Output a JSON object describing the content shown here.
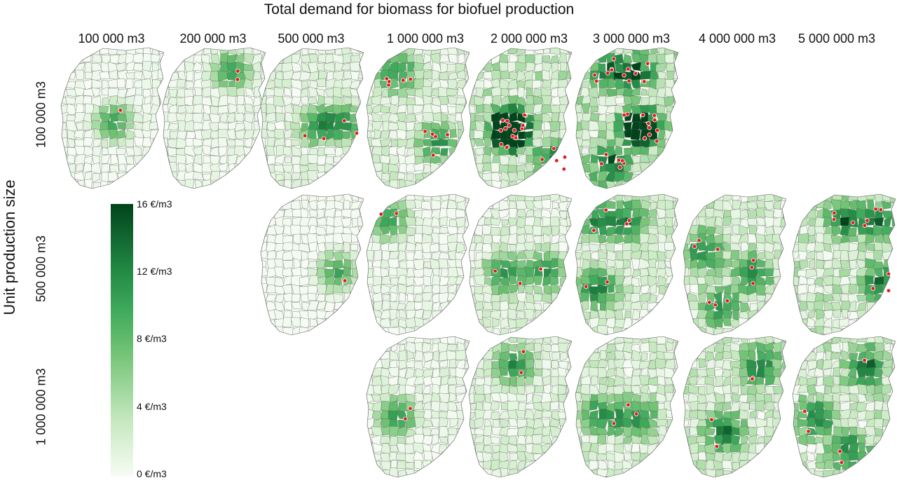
{
  "title": "Total demand for biomass for biofuel production",
  "y_axis_label": "Unit production size",
  "columns": [
    "100 000 m3",
    "200 000 m3",
    "500 000 m3",
    "1 000 000 m3",
    "2 000 000 m3",
    "3 000 000 m3",
    "4 000 000 m3",
    "5 000 000 m3"
  ],
  "rows": [
    "100 000 m3",
    "500 000 m3",
    "1 000 000 m3"
  ],
  "legend": {
    "ticks": [
      "16 €/m3",
      "12 €/m3",
      "8 €/m3",
      "4 €/m3",
      "0 €/m3"
    ],
    "range": [
      0,
      16
    ],
    "colors": [
      "#f7fcf5",
      "#c7e9c0",
      "#74c476",
      "#41ab5d",
      "#238b45",
      "#00441b"
    ]
  },
  "colors": {
    "site_marker": "#e41a1c",
    "boundary": "#5a5a5a",
    "background_region": "#f4faf1"
  },
  "panels": [
    {
      "row": 0,
      "col": 0,
      "intensity": 0.1,
      "sites": 1,
      "hot": 1
    },
    {
      "row": 0,
      "col": 1,
      "intensity": 0.15,
      "sites": 2,
      "hot": 1
    },
    {
      "row": 0,
      "col": 2,
      "intensity": 0.25,
      "sites": 4,
      "hot": 2
    },
    {
      "row": 0,
      "col": 3,
      "intensity": 0.35,
      "sites": 10,
      "hot": 2
    },
    {
      "row": 0,
      "col": 4,
      "intensity": 0.55,
      "sites": 20,
      "hot": 4
    },
    {
      "row": 0,
      "col": 5,
      "intensity": 0.6,
      "sites": 30,
      "hot": 5
    },
    {
      "row": 1,
      "col": 2,
      "intensity": 0.05,
      "sites": 1,
      "hot": 1
    },
    {
      "row": 1,
      "col": 3,
      "intensity": 0.15,
      "sites": 2,
      "hot": 1
    },
    {
      "row": 1,
      "col": 4,
      "intensity": 0.3,
      "sites": 3,
      "hot": 2
    },
    {
      "row": 1,
      "col": 5,
      "intensity": 0.4,
      "sites": 6,
      "hot": 3
    },
    {
      "row": 1,
      "col": 6,
      "intensity": 0.45,
      "sites": 9,
      "hot": 3
    },
    {
      "row": 1,
      "col": 7,
      "intensity": 0.5,
      "sites": 10,
      "hot": 3
    },
    {
      "row": 2,
      "col": 3,
      "intensity": 0.2,
      "sites": 2,
      "hot": 1
    },
    {
      "row": 2,
      "col": 4,
      "intensity": 0.3,
      "sites": 2,
      "hot": 1
    },
    {
      "row": 2,
      "col": 5,
      "intensity": 0.4,
      "sites": 3,
      "hot": 2
    },
    {
      "row": 2,
      "col": 6,
      "intensity": 0.45,
      "sites": 4,
      "hot": 2
    },
    {
      "row": 2,
      "col": 7,
      "intensity": 0.5,
      "sites": 5,
      "hot": 3
    }
  ]
}
